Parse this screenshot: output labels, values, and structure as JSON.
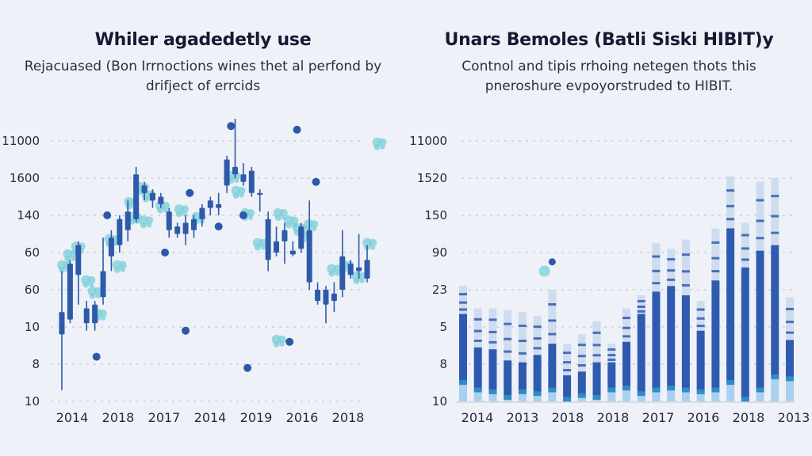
{
  "chart_data": [
    {
      "type": "candlestick",
      "title": "Whiler agadedetly use",
      "subtitle": "Rejacuased (Bon Irrnoctions wines thet al perfond by drifject of errcids",
      "xlabel": "",
      "ylabel": "",
      "y_ticks": [
        "11000",
        "1600",
        "140",
        "60",
        "60",
        "10",
        "8",
        "10"
      ],
      "x_ticks": [
        "2014",
        "2018",
        "2017",
        "2014",
        "2019",
        "2016",
        "2018"
      ],
      "grid": true,
      "colors": {
        "candle": "#2f5aaa",
        "scatter_dark": "#2c58ac",
        "scatter_light": "#5cc6cf"
      },
      "candles": [
        {
          "o": 1.8,
          "c": 2.4,
          "h": 3.5,
          "l": 0.3
        },
        {
          "o": 2.2,
          "c": 3.7,
          "h": 3.8,
          "l": 2.1
        },
        {
          "o": 3.4,
          "c": 4.2,
          "h": 4.3,
          "l": 2.6
        },
        {
          "o": 2.1,
          "c": 2.5,
          "h": 2.7,
          "l": 1.9
        },
        {
          "o": 2.1,
          "c": 2.6,
          "h": 2.7,
          "l": 1.9
        },
        {
          "o": 2.8,
          "c": 3.5,
          "h": 4.4,
          "l": 2.6
        },
        {
          "o": 3.9,
          "c": 4.4,
          "h": 4.6,
          "l": 3.5
        },
        {
          "o": 4.2,
          "c": 4.9,
          "h": 5.0,
          "l": 4.0
        },
        {
          "o": 4.6,
          "c": 5.1,
          "h": 5.4,
          "l": 4.3
        },
        {
          "o": 4.9,
          "c": 6.1,
          "h": 6.3,
          "l": 4.8
        },
        {
          "o": 5.8,
          "c": 5.6,
          "h": 5.9,
          "l": 5.4
        },
        {
          "o": 5.6,
          "c": 5.4,
          "h": 5.7,
          "l": 5.2
        },
        {
          "o": 5.5,
          "c": 5.3,
          "h": 5.6,
          "l": 5.2
        },
        {
          "o": 5.1,
          "c": 4.6,
          "h": 5.2,
          "l": 4.4
        },
        {
          "o": 4.7,
          "c": 4.5,
          "h": 4.8,
          "l": 4.4
        },
        {
          "o": 4.8,
          "c": 4.5,
          "h": 5.0,
          "l": 4.2
        },
        {
          "o": 4.9,
          "c": 4.6,
          "h": 5.0,
          "l": 4.4
        },
        {
          "o": 5.2,
          "c": 4.9,
          "h": 5.3,
          "l": 4.7
        },
        {
          "o": 5.4,
          "c": 5.2,
          "h": 5.5,
          "l": 5.0
        },
        {
          "o": 5.2,
          "c": 5.3,
          "h": 5.6,
          "l": 5.0
        },
        {
          "o": 5.8,
          "c": 6.5,
          "h": 6.6,
          "l": 5.6
        },
        {
          "o": 6.3,
          "c": 6.1,
          "h": 8.1,
          "l": 6.0
        },
        {
          "o": 6.1,
          "c": 5.9,
          "h": 6.4,
          "l": 5.8
        },
        {
          "o": 6.2,
          "c": 5.6,
          "h": 6.3,
          "l": 5.5
        },
        {
          "o": 5.6,
          "c": 5.55,
          "h": 5.7,
          "l": 5.1
        },
        {
          "o": 4.9,
          "c": 3.8,
          "h": 5.1,
          "l": 3.5
        },
        {
          "o": 4.3,
          "c": 4.0,
          "h": 4.7,
          "l": 3.9
        },
        {
          "o": 4.6,
          "c": 4.3,
          "h": 4.8,
          "l": 3.7
        },
        {
          "o": 3.95,
          "c": 4.05,
          "h": 4.3,
          "l": 3.9
        },
        {
          "o": 4.1,
          "c": 4.7,
          "h": 4.8,
          "l": 4.0
        },
        {
          "o": 4.6,
          "c": 3.2,
          "h": 5.4,
          "l": 3.0
        },
        {
          "o": 3.0,
          "c": 2.7,
          "h": 3.2,
          "l": 2.6
        },
        {
          "o": 3.0,
          "c": 2.6,
          "h": 3.1,
          "l": 2.1
        },
        {
          "o": 2.9,
          "c": 2.7,
          "h": 3.2,
          "l": 2.4
        },
        {
          "o": 3.9,
          "c": 3.0,
          "h": 4.6,
          "l": 2.8
        },
        {
          "o": 3.7,
          "c": 3.4,
          "h": 3.8,
          "l": 3.3
        },
        {
          "o": 3.6,
          "c": 3.5,
          "h": 4.5,
          "l": 3.3
        },
        {
          "o": 3.8,
          "c": 3.3,
          "h": 4.2,
          "l": 3.2
        }
      ],
      "scatter_dark": [
        {
          "i": 5.5,
          "y": 5.0
        },
        {
          "i": 4.2,
          "y": 1.2
        },
        {
          "i": 15.5,
          "y": 5.6
        },
        {
          "i": 12.5,
          "y": 4.0
        },
        {
          "i": 19.0,
          "y": 4.7
        },
        {
          "i": 20.5,
          "y": 7.4
        },
        {
          "i": 15.0,
          "y": 1.9
        },
        {
          "i": 22.0,
          "y": 5.0
        },
        {
          "i": 28.5,
          "y": 7.3
        },
        {
          "i": 30.8,
          "y": 5.9
        },
        {
          "i": 22.5,
          "y": 0.9
        },
        {
          "i": 27.6,
          "y": 1.6
        }
      ],
      "scatter_light": [
        {
          "i": 0.3,
          "y": 3.6
        },
        {
          "i": 1.0,
          "y": 3.9
        },
        {
          "i": 2.0,
          "y": 4.1
        },
        {
          "i": 3.2,
          "y": 3.2
        },
        {
          "i": 4.0,
          "y": 2.9
        },
        {
          "i": 4.6,
          "y": 2.3
        },
        {
          "i": 6.0,
          "y": 4.3
        },
        {
          "i": 7.0,
          "y": 3.6
        },
        {
          "i": 8.4,
          "y": 5.3
        },
        {
          "i": 8.8,
          "y": 4.9
        },
        {
          "i": 9.7,
          "y": 5.7
        },
        {
          "i": 10.5,
          "y": 5.5
        },
        {
          "i": 10.2,
          "y": 4.8
        },
        {
          "i": 12.2,
          "y": 5.2
        },
        {
          "i": 14.5,
          "y": 5.1
        },
        {
          "i": 16.6,
          "y": 4.9
        },
        {
          "i": 20.8,
          "y": 6.0
        },
        {
          "i": 21.4,
          "y": 5.6
        },
        {
          "i": 22.5,
          "y": 5.0
        },
        {
          "i": 26.5,
          "y": 5.0
        },
        {
          "i": 27.8,
          "y": 4.8
        },
        {
          "i": 28.8,
          "y": 4.6
        },
        {
          "i": 29.5,
          "y": 4.4
        },
        {
          "i": 30.2,
          "y": 4.7
        },
        {
          "i": 33.0,
          "y": 3.5
        },
        {
          "i": 34.5,
          "y": 3.6
        },
        {
          "i": 36.0,
          "y": 3.3
        },
        {
          "i": 37.3,
          "y": 4.2
        },
        {
          "i": 38.5,
          "y": 6.9
        },
        {
          "i": 26.3,
          "y": 1.6
        },
        {
          "i": 24.0,
          "y": 4.2
        }
      ]
    },
    {
      "type": "bar",
      "stacked": true,
      "title": "Unars Bemoles (Batli Siski HIBIT)y",
      "subtitle": "Contnol and tipis rrhoing netegen thots this pneroshure evpoyorstruded to HIBIT.",
      "xlabel": "",
      "ylabel": "",
      "y_ticks": [
        "11000",
        "1520",
        "150",
        "90",
        "23",
        "5",
        "8",
        "10"
      ],
      "x_ticks": [
        "2014",
        "2013",
        "2018",
        "2018",
        "2017",
        "2016",
        "2018",
        "2013"
      ],
      "grid": true,
      "colors": {
        "base": "#a9d0ee",
        "band": "#2f8cc4",
        "main": "#2e5bb0",
        "top": "#cfdcef",
        "stripe": "#2e5bb0"
      },
      "bars": [
        {
          "base": 0.55,
          "main": 1.8,
          "top": 0.75
        },
        {
          "base": 0.35,
          "main": 1.1,
          "top": 1.05
        },
        {
          "base": 0.3,
          "main": 1.1,
          "top": 1.1
        },
        {
          "base": 0.15,
          "main": 0.95,
          "top": 1.35
        },
        {
          "base": 0.3,
          "main": 0.75,
          "top": 1.35
        },
        {
          "base": 0.25,
          "main": 1.0,
          "top": 1.05
        },
        {
          "base": 0.35,
          "main": 1.2,
          "top": 1.45
        },
        {
          "base": 0.1,
          "main": 0.6,
          "top": 0.85
        },
        {
          "base": 0.2,
          "main": 0.6,
          "top": 1.0
        },
        {
          "base": 0.15,
          "main": 0.9,
          "top": 1.1
        },
        {
          "base": 0.35,
          "main": 0.7,
          "top": 0.5
        },
        {
          "base": 0.4,
          "main": 1.2,
          "top": 0.9
        },
        {
          "base": 0.25,
          "main": 2.1,
          "top": 0.5
        },
        {
          "base": 0.35,
          "main": 2.6,
          "top": 1.3
        },
        {
          "base": 0.4,
          "main": 2.7,
          "top": 1.0
        },
        {
          "base": 0.35,
          "main": 2.5,
          "top": 1.5
        },
        {
          "base": 0.3,
          "main": 1.6,
          "top": 0.8
        },
        {
          "base": 0.35,
          "main": 2.9,
          "top": 1.4
        },
        {
          "base": 0.55,
          "main": 4.1,
          "top": 1.4
        },
        {
          "base": 0.1,
          "main": 3.5,
          "top": 1.2
        },
        {
          "base": 0.35,
          "main": 3.7,
          "top": 1.85
        },
        {
          "base": 0.7,
          "main": 3.5,
          "top": 1.8
        },
        {
          "base": 0.65,
          "main": 1.0,
          "top": 1.15
        }
      ],
      "scatter_dark": [
        {
          "i": 6,
          "y": 3.75
        }
      ],
      "scatter_light": [
        {
          "i": 5.8,
          "y": 3.5
        }
      ]
    }
  ]
}
